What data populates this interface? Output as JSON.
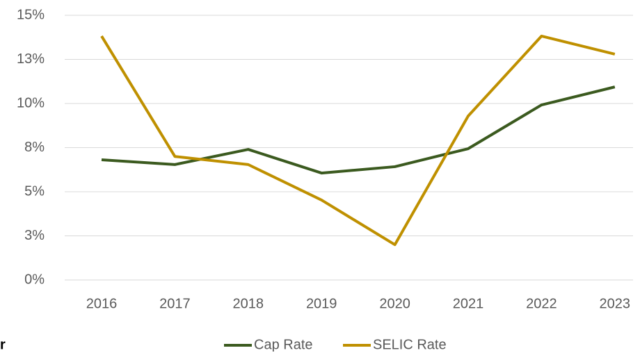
{
  "chart_data": {
    "type": "line",
    "categories": [
      "2016",
      "2017",
      "2018",
      "2019",
      "2020",
      "2021",
      "2022",
      "2023"
    ],
    "series": [
      {
        "name": "Cap Rate",
        "color": "#3b5a1f",
        "values": [
          6.81,
          6.54,
          7.4,
          6.06,
          6.42,
          7.44,
          9.92,
          10.94
        ]
      },
      {
        "name": "SELIC Rate",
        "color": "#bf9000",
        "values": [
          13.82,
          7.0,
          6.54,
          4.53,
          2.0,
          9.29,
          13.82,
          12.8
        ]
      }
    ],
    "ylim": [
      0,
      15
    ],
    "yticks": [
      {
        "value": 0,
        "label": "0%"
      },
      {
        "value": 2.5,
        "label": "3%"
      },
      {
        "value": 5,
        "label": "5%"
      },
      {
        "value": 7.5,
        "label": "8%"
      },
      {
        "value": 10,
        "label": "10%"
      },
      {
        "value": 12.5,
        "label": "13%"
      },
      {
        "value": 15,
        "label": "15%"
      }
    ],
    "grid": true,
    "legend": "bottom",
    "annotation": "r"
  }
}
